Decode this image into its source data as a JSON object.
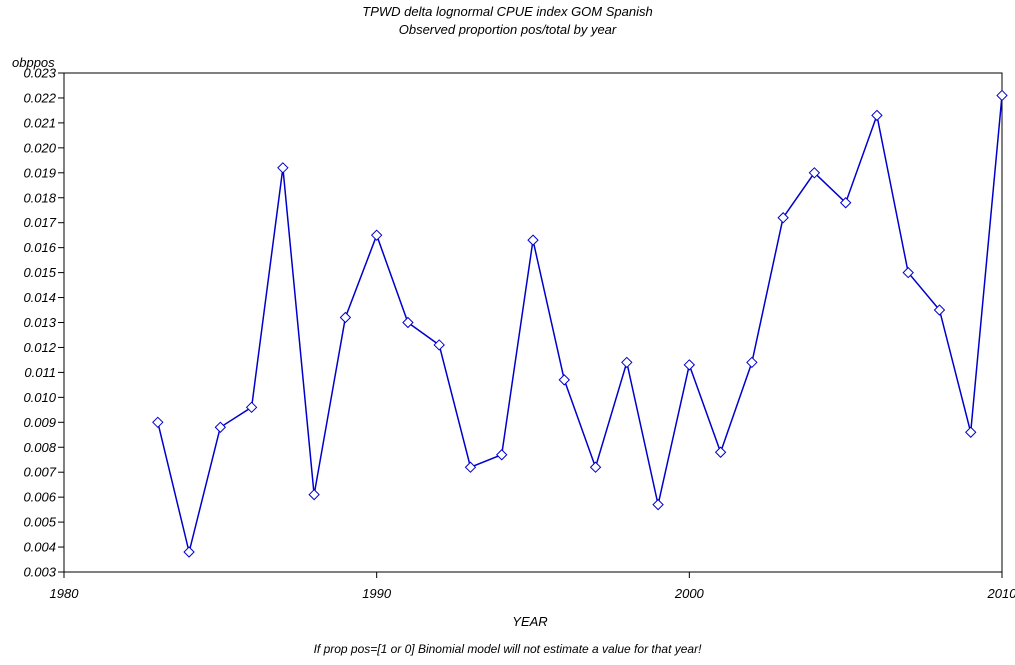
{
  "chart_data": {
    "type": "line",
    "title": "TPWD delta lognormal CPUE index GOM Spanish",
    "subtitle": "Observed proportion pos/total by year",
    "xlabel": "YEAR",
    "ylabel": "obppos",
    "footnote": "If prop pos=[1 or 0] Binomial model will not estimate a value for that year!",
    "xlim": [
      1980,
      2010
    ],
    "ylim": [
      0.003,
      0.023
    ],
    "x_ticks": [
      1980,
      1990,
      2000,
      2010
    ],
    "y_ticks": [
      "0.003",
      "0.004",
      "0.005",
      "0.006",
      "0.007",
      "0.008",
      "0.009",
      "0.010",
      "0.011",
      "0.012",
      "0.013",
      "0.014",
      "0.015",
      "0.016",
      "0.017",
      "0.018",
      "0.019",
      "0.020",
      "0.021",
      "0.022",
      "0.023"
    ],
    "grid": false,
    "line_color": "#0000cc",
    "marker": "diamond",
    "x": [
      1983,
      1984,
      1985,
      1986,
      1987,
      1988,
      1989,
      1990,
      1991,
      1992,
      1993,
      1994,
      1995,
      1996,
      1997,
      1998,
      1999,
      2000,
      2001,
      2002,
      2003,
      2004,
      2005,
      2006,
      2007,
      2008,
      2009,
      2010
    ],
    "values": [
      0.009,
      0.0038,
      0.0088,
      0.0096,
      0.0192,
      0.0061,
      0.0132,
      0.0165,
      0.013,
      0.0121,
      0.0072,
      0.0077,
      0.0163,
      0.0107,
      0.0072,
      0.0114,
      0.0057,
      0.0113,
      0.0078,
      0.0114,
      0.0172,
      0.019,
      0.0178,
      0.0213,
      0.015,
      0.0135,
      0.0086,
      0.0221
    ]
  }
}
